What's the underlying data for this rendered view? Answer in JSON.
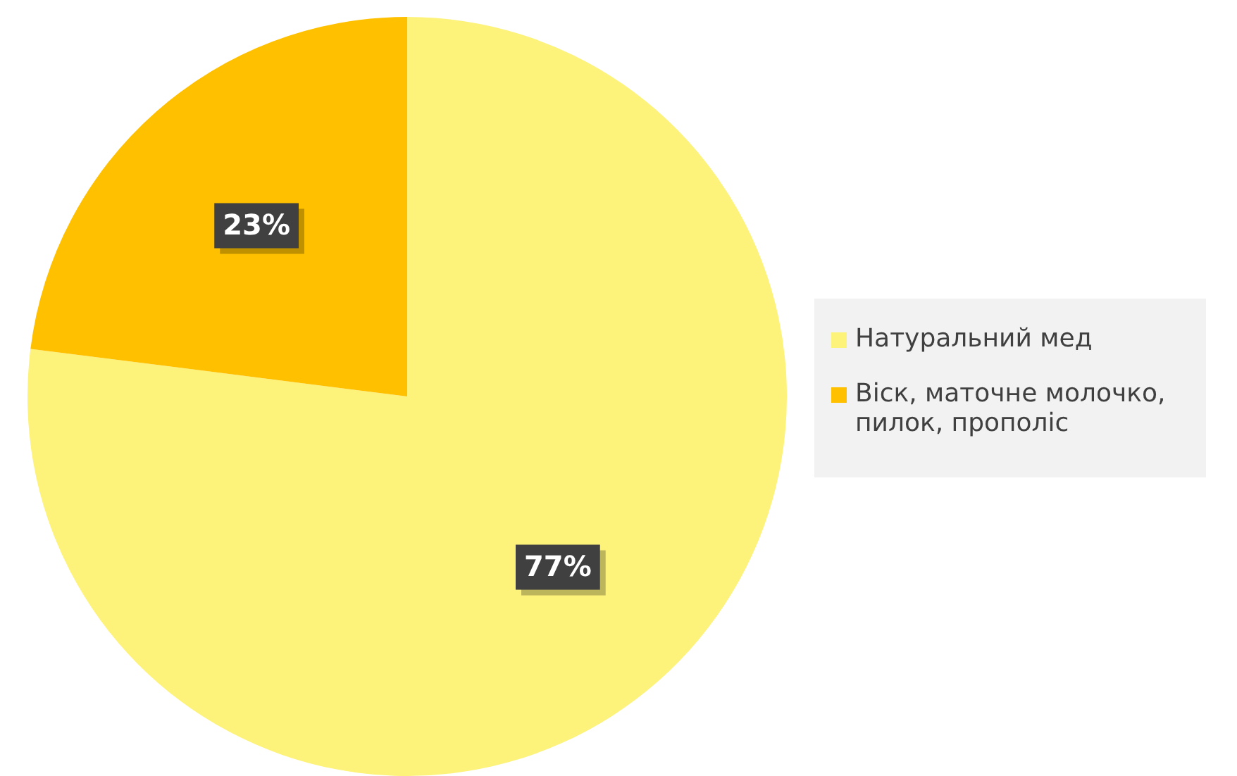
{
  "chart_data": {
    "type": "pie",
    "categories": [
      "Натуральний мед",
      "Віск, маточне молочко, пилок, прополіс"
    ],
    "values": [
      77,
      23
    ],
    "colors": [
      "#fdf27a",
      "#ffc000"
    ],
    "value_labels": [
      "77%",
      "23%"
    ],
    "legend": "right"
  }
}
